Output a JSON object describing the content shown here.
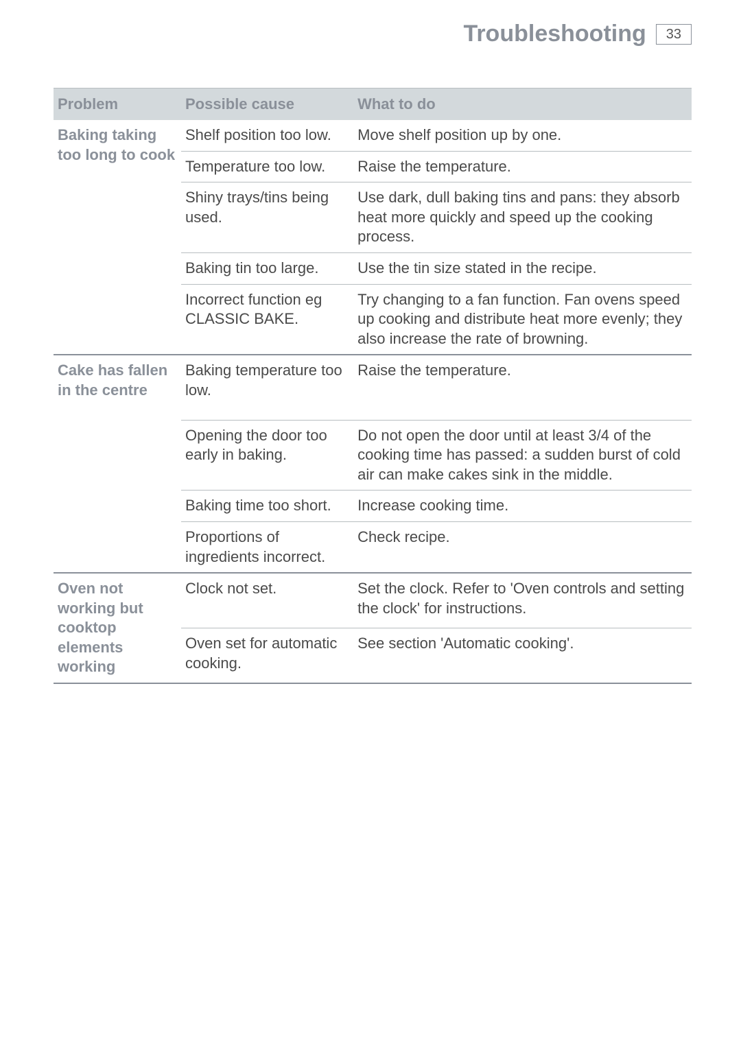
{
  "header": {
    "title": "Troubleshooting",
    "page_number": "33"
  },
  "table": {
    "columns": [
      "Problem",
      "Possible cause",
      "What to do"
    ],
    "sections": [
      {
        "problem": "Baking taking too long to cook",
        "rows": [
          {
            "cause": "Shelf position too low.",
            "action": "Move shelf position up by one."
          },
          {
            "cause": "Temperature too low.",
            "action": "Raise the temperature."
          },
          {
            "cause": "Shiny trays/tins being used.",
            "action": "Use dark, dull baking tins and pans: they absorb heat more quickly and speed up the cooking process."
          },
          {
            "cause": "Baking tin too large.",
            "action": "Use the tin size stated in the recipe."
          },
          {
            "cause": "Incorrect function eg CLASSIC BAKE.",
            "action": "Try changing to a fan function. Fan ovens speed up cooking and distribute heat more evenly; they also increase the rate of browning."
          }
        ],
        "problem_rowspan": 5
      },
      {
        "problem": "Cake has fallen in the centre",
        "rows": [
          {
            "cause": "Baking temperature too low.",
            "action": "Raise the temperature."
          },
          {
            "cause": "Opening the door too early in baking.",
            "action": "Do not open the door until at least 3/4 of the cooking time has passed: a sudden burst of cold air can make cakes sink in the middle."
          },
          {
            "cause": "Baking time too short.",
            "action": "Increase cooking time."
          },
          {
            "cause": "Proportions of ingredients incorrect.",
            "action": "Check recipe."
          }
        ],
        "problem_rowspan": 4
      },
      {
        "problem": "Oven not working but cooktop elements working",
        "rows": [
          {
            "cause": "Clock not set.",
            "action": "Set the clock. Refer to 'Oven controls and setting the clock' for instructions."
          },
          {
            "cause": "Oven set for automatic cooking.",
            "action": "See section 'Automatic cooking'."
          }
        ],
        "problem_rowspan": 2
      }
    ]
  },
  "colors": {
    "header_text": "#8a9099",
    "body_text": "#4a4a4a",
    "thead_bg": "#d3d9dc",
    "border_light": "#b7bdc0",
    "border_heavy": "#8a9099",
    "background": "#ffffff"
  },
  "typography": {
    "header_title_size": 34,
    "page_number_size": 20,
    "th_size": 22,
    "td_size": 22
  }
}
